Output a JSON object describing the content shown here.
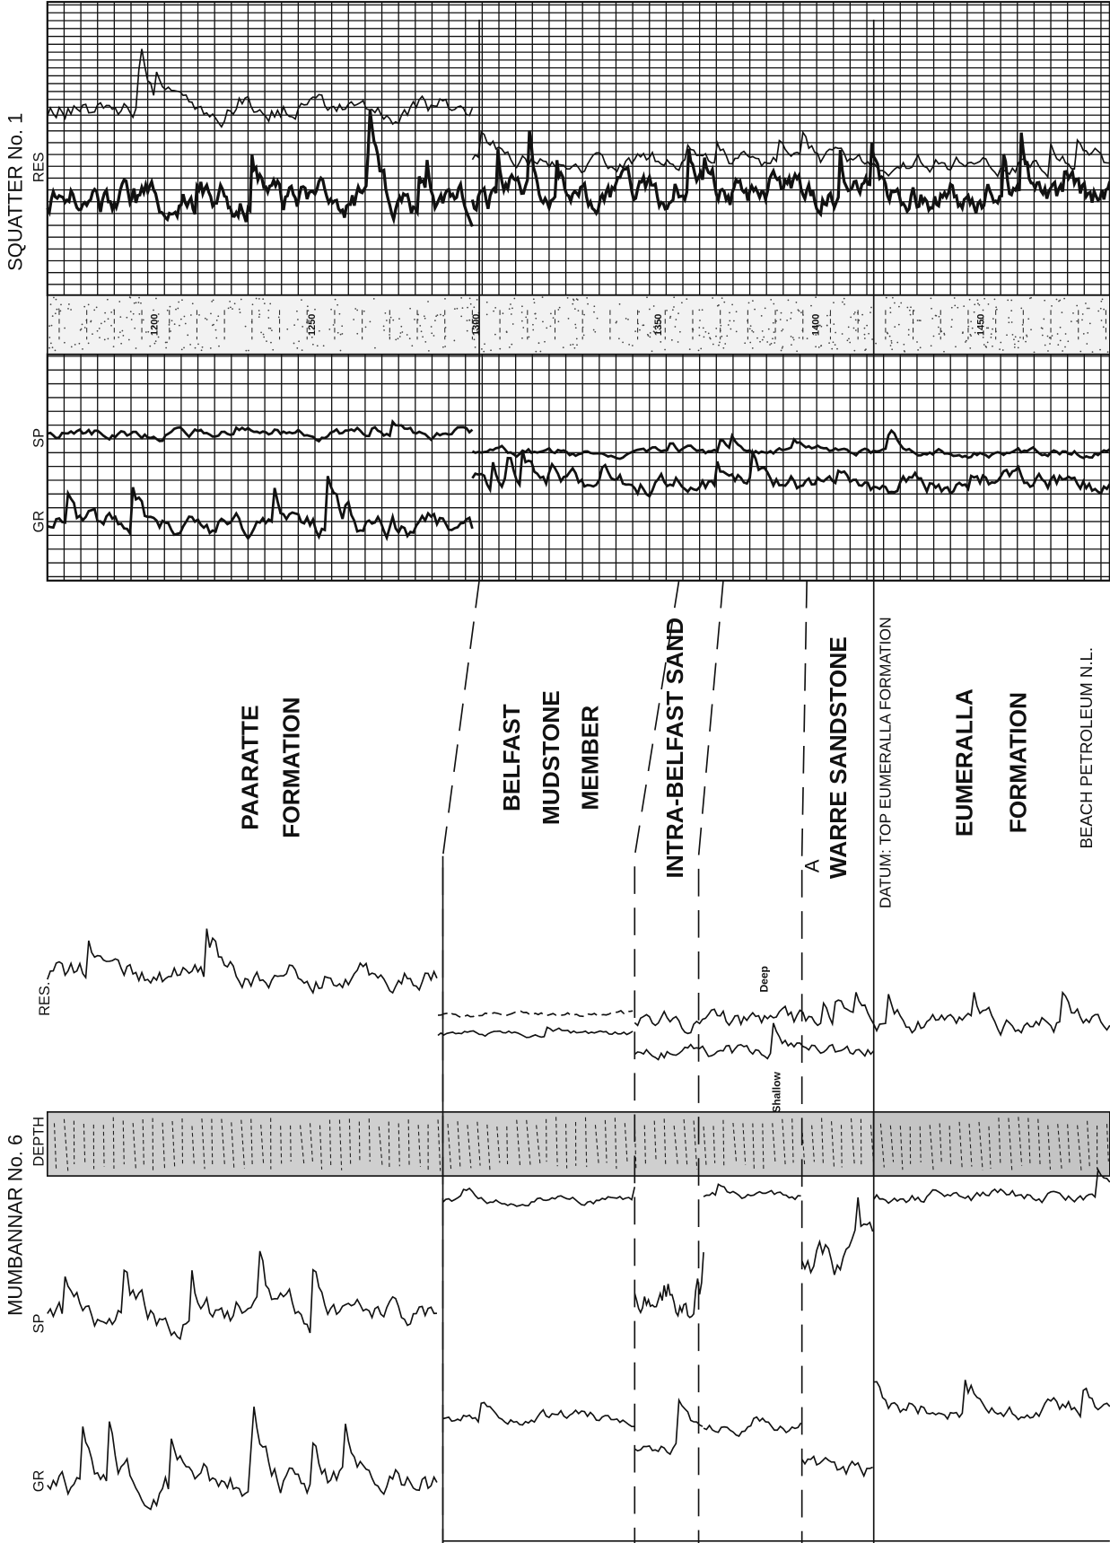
{
  "squatter": {
    "title": "SQUATTER No. 1",
    "res_label": "RES",
    "sp_label": "SP",
    "gr_label": "GR",
    "depths": [
      "1200",
      "1250",
      "1300",
      "1350",
      "1400",
      "1450"
    ]
  },
  "mumbannar": {
    "title": "MUMBANNAR No. 6",
    "depth_label": "DEPTH",
    "sp_label": "SP",
    "gr_label": "GR",
    "res_label": "RES.",
    "deep_label": "Deep",
    "shallow_label": "Shallow"
  },
  "formations": [
    {
      "lines": [
        "PAARATTE",
        "FORMATION"
      ]
    },
    {
      "lines": [
        "BELFAST",
        "MUDSTONE",
        "MEMBER"
      ]
    },
    {
      "lines": [
        "INTRA-BELFAST SAND"
      ]
    },
    {
      "lines": [
        "WARRE SANDSTONE"
      ]
    },
    {
      "lines": [
        "EUMERALLA",
        "FORMATION"
      ]
    }
  ],
  "marker": "A",
  "datum": "DATUM: TOP EUMERALLA FORMATION",
  "credit": "BEACH PETROLEUM N.L."
}
